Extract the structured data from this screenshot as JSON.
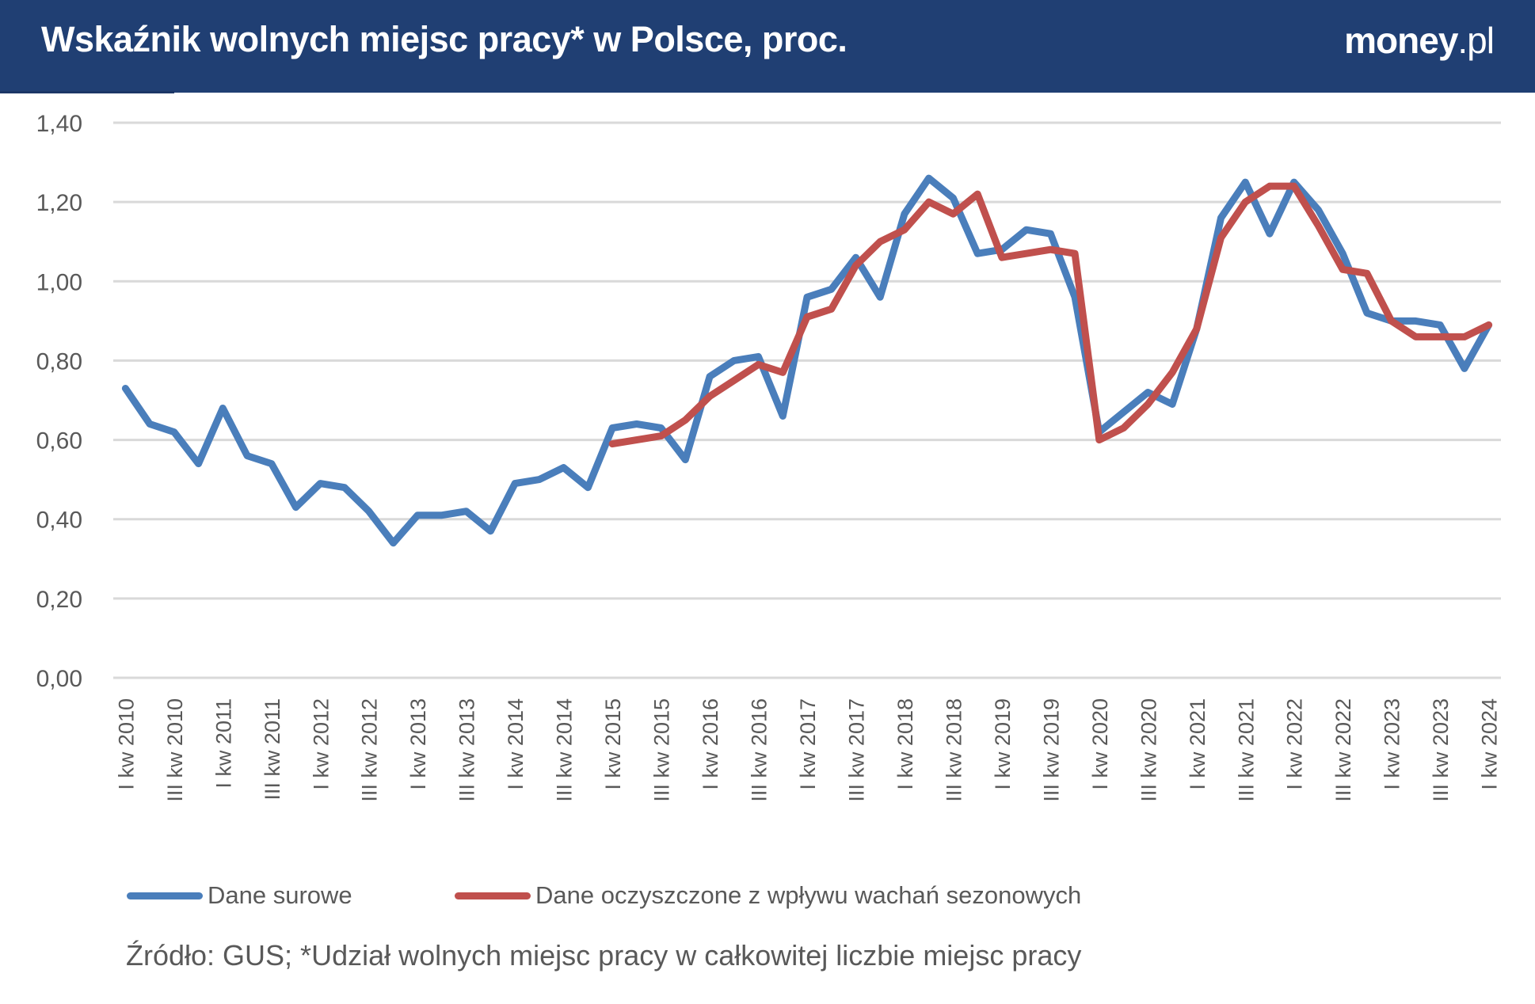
{
  "header": {
    "title": "Wskaźnik wolnych miejsc pracy* w Polsce, proc.",
    "logo_bold": "money",
    "logo_light": ".pl",
    "background": "#203f73"
  },
  "legend": {
    "items": [
      {
        "label": "Dane surowe",
        "color": "#4a7ebb"
      },
      {
        "label": "Dane oczyszczone z wpływu wachań sezonowych",
        "color": "#c0504d"
      }
    ]
  },
  "footer": {
    "source": "Źródło: GUS; *Udział wolnych miejsc pracy w całkowitej liczbie miejsc pracy"
  },
  "chart_data": {
    "type": "line",
    "title": "Wskaźnik wolnych miejsc pracy* w Polsce, proc.",
    "xlabel": "",
    "ylabel": "",
    "ylim": [
      0,
      1.4
    ],
    "yticks": [
      "0,00",
      "0,20",
      "0,40",
      "0,60",
      "0,80",
      "1,00",
      "1,20",
      "1,40"
    ],
    "grid": true,
    "legend_position": "bottom",
    "x_tick_labels": [
      "I kw 2010",
      "III kw 2010",
      "I kw 2011",
      "III kw 2011",
      "I kw 2012",
      "III kw 2012",
      "I kw 2013",
      "III kw 2013",
      "I kw 2014",
      "III kw 2014",
      "I kw 2015",
      "III kw 2015",
      "I kw 2016",
      "III kw 2016",
      "I kw 2017",
      "III kw 2017",
      "I kw 2018",
      "III kw 2018",
      "I kw 2019",
      "III kw 2019",
      "I kw 2020",
      "III kw 2020",
      "I kw 2021",
      "III kw 2021",
      "I kw 2022",
      "III kw 2022",
      "I kw 2023",
      "III kw 2023",
      "I kw 2024"
    ],
    "categories": [
      "I kw 2010",
      "II kw 2010",
      "III kw 2010",
      "IV kw 2010",
      "I kw 2011",
      "II kw 2011",
      "III kw 2011",
      "IV kw 2011",
      "I kw 2012",
      "II kw 2012",
      "III kw 2012",
      "IV kw 2012",
      "I kw 2013",
      "II kw 2013",
      "III kw 2013",
      "IV kw 2013",
      "I kw 2014",
      "II kw 2014",
      "III kw 2014",
      "IV kw 2014",
      "I kw 2015",
      "II kw 2015",
      "III kw 2015",
      "IV kw 2015",
      "I kw 2016",
      "II kw 2016",
      "III kw 2016",
      "IV kw 2016",
      "I kw 2017",
      "II kw 2017",
      "III kw 2017",
      "IV kw 2017",
      "I kw 2018",
      "II kw 2018",
      "III kw 2018",
      "IV kw 2018",
      "I kw 2019",
      "II kw 2019",
      "III kw 2019",
      "IV kw 2019",
      "I kw 2020",
      "II kw 2020",
      "III kw 2020",
      "IV kw 2020",
      "I kw 2021",
      "II kw 2021",
      "III kw 2021",
      "IV kw 2021",
      "I kw 2022",
      "II kw 2022",
      "III kw 2022",
      "IV kw 2022",
      "I kw 2023",
      "II kw 2023",
      "III kw 2023",
      "IV kw 2023",
      "I kw 2024"
    ],
    "series": [
      {
        "name": "Dane surowe",
        "color": "#4a7ebb",
        "values": [
          0.73,
          0.64,
          0.62,
          0.54,
          0.68,
          0.56,
          0.54,
          0.43,
          0.49,
          0.48,
          0.42,
          0.34,
          0.41,
          0.41,
          0.42,
          0.37,
          0.49,
          0.5,
          0.53,
          0.48,
          0.63,
          0.64,
          0.63,
          0.55,
          0.76,
          0.8,
          0.81,
          0.66,
          0.96,
          0.98,
          1.06,
          0.96,
          1.17,
          1.26,
          1.21,
          1.07,
          1.08,
          1.13,
          1.12,
          0.96,
          0.62,
          0.67,
          0.72,
          0.69,
          0.88,
          1.16,
          1.25,
          1.12,
          1.25,
          1.18,
          1.07,
          0.92,
          0.9,
          0.9,
          0.89,
          0.78,
          0.89
        ]
      },
      {
        "name": "Dane oczyszczone z wpływu wachań sezonowych",
        "color": "#c0504d",
        "values": [
          null,
          null,
          null,
          null,
          null,
          null,
          null,
          null,
          null,
          null,
          null,
          null,
          null,
          null,
          null,
          null,
          null,
          null,
          null,
          null,
          0.59,
          0.6,
          0.61,
          0.65,
          0.71,
          0.75,
          0.79,
          0.77,
          0.91,
          0.93,
          1.04,
          1.1,
          1.13,
          1.2,
          1.17,
          1.22,
          1.06,
          1.07,
          1.08,
          1.07,
          0.6,
          0.63,
          0.69,
          0.77,
          0.88,
          1.11,
          1.2,
          1.24,
          1.24,
          1.14,
          1.03,
          1.02,
          0.9,
          0.86,
          0.86,
          0.86,
          0.89
        ]
      }
    ]
  }
}
